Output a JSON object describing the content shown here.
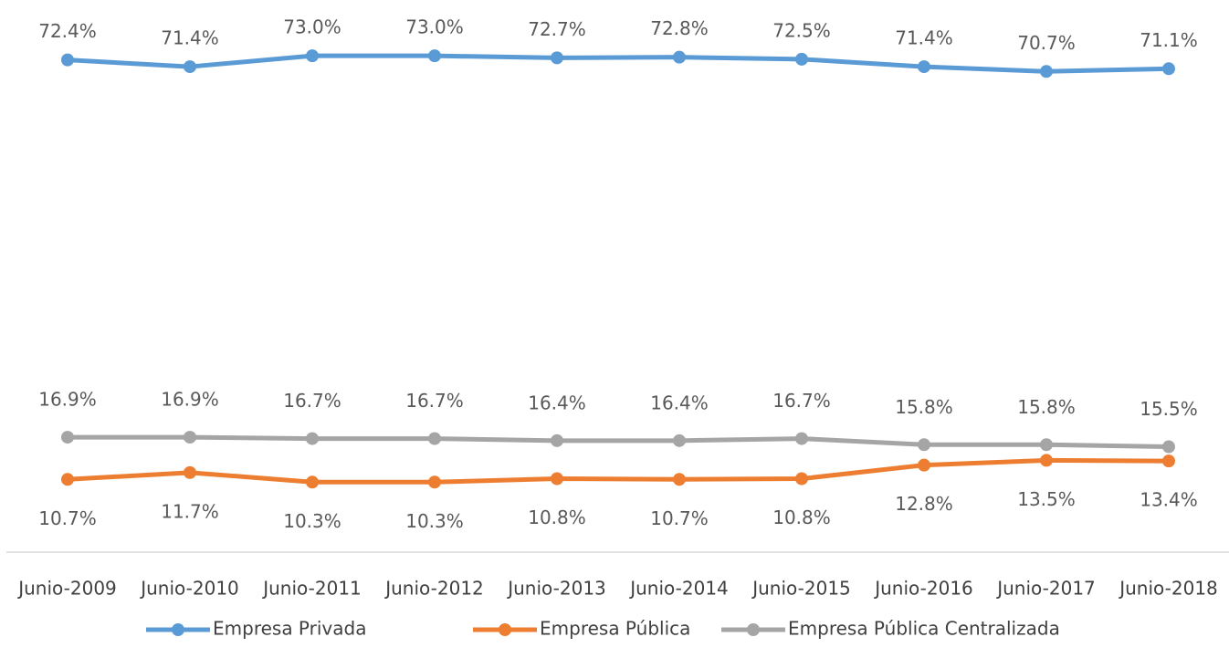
{
  "chart_data": {
    "type": "line",
    "categories": [
      "Junio-2009",
      "Junio-2010",
      "Junio-2011",
      "Junio-2012",
      "Junio-2013",
      "Junio-2014",
      "Junio-2015",
      "Junio-2016",
      "Junio-2017",
      "Junio-2018"
    ],
    "series": [
      {
        "name": "Empresa Privada",
        "color": "#5b9bd5",
        "values": [
          72.4,
          71.4,
          73.0,
          73.0,
          72.7,
          72.8,
          72.5,
          71.4,
          70.7,
          71.1
        ],
        "value_labels": [
          "72.4%",
          "71.4%",
          "73.0%",
          "73.0%",
          "72.7%",
          "72.8%",
          "72.5%",
          "71.4%",
          "70.7%",
          "71.1%"
        ]
      },
      {
        "name": "Empresa Pública",
        "color": "#ed7d31",
        "values": [
          10.7,
          11.7,
          10.3,
          10.3,
          10.8,
          10.7,
          10.8,
          12.8,
          13.5,
          13.4
        ],
        "value_labels": [
          "10.7%",
          "11.7%",
          "10.3%",
          "10.3%",
          "10.8%",
          "10.7%",
          "10.8%",
          "12.8%",
          "13.5%",
          "13.4%"
        ]
      },
      {
        "name": "Empresa Pública Centralizada",
        "color": "#a5a5a5",
        "values": [
          16.9,
          16.9,
          16.7,
          16.7,
          16.4,
          16.4,
          16.7,
          15.8,
          15.8,
          15.5
        ],
        "value_labels": [
          "16.9%",
          "16.9%",
          "16.7%",
          "16.7%",
          "16.4%",
          "16.4%",
          "16.7%",
          "15.8%",
          "15.8%",
          "15.5%"
        ]
      }
    ],
    "ylim": [
      0,
      80
    ],
    "legend": "bottom"
  }
}
